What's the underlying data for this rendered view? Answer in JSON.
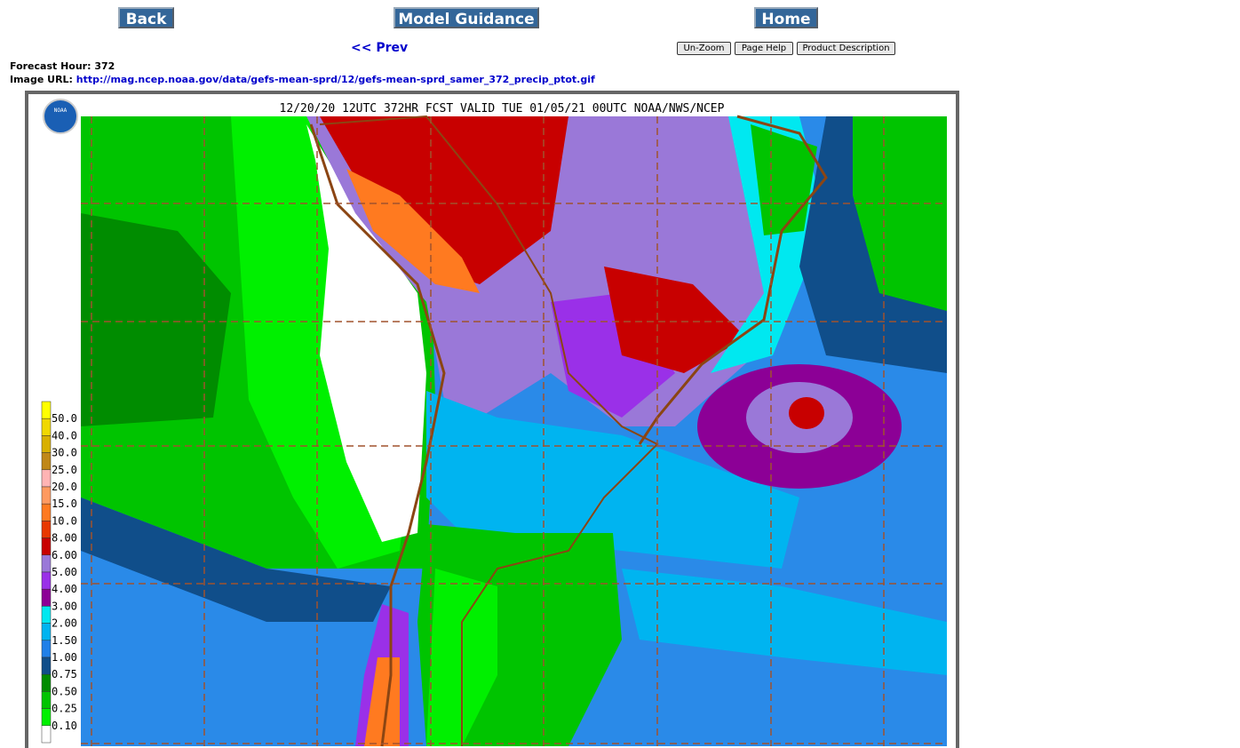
{
  "nav": {
    "back": "Back",
    "model_guidance": "Model Guidance",
    "home": "Home",
    "prev": "<< Prev"
  },
  "buttons": [
    "Un-Zoom",
    "Page Help",
    "Product Description"
  ],
  "info": {
    "forecast_hour": "Forecast Hour: 372",
    "image_url_label": "Image URL:",
    "image_url": "http://mag.ncep.noaa.gov/data/gefs-mean-sprd/12/gefs-mean-sprd_samer_372_precip_ptot.gif"
  },
  "map": {
    "title": "12/20/20 12UTC 372HR FCST VALID TUE 01/05/21 00UTC NOAA/NWS/NCEP",
    "logo": "NOAA",
    "legend": {
      "labels": [
        "50.0",
        "40.0",
        "30.0",
        "25.0",
        "20.0",
        "15.0",
        "10.0",
        "8.00",
        "6.00",
        "5.00",
        "4.00",
        "3.00",
        "2.00",
        "1.50",
        "1.00",
        "0.75",
        "0.50",
        "0.25",
        "0.10"
      ],
      "colors": [
        "#ffff00",
        "#f0d800",
        "#d8b000",
        "#c08818",
        "#ffb4b4",
        "#ff9a60",
        "#ff7a20",
        "#e83800",
        "#c80000",
        "#9a78d8",
        "#9a30e8",
        "#8c0096",
        "#00e8f0",
        "#00b4f0",
        "#2080e8",
        "#104e8a",
        "#008c00",
        "#00c400",
        "#00f000",
        "#ffffff"
      ]
    }
  }
}
